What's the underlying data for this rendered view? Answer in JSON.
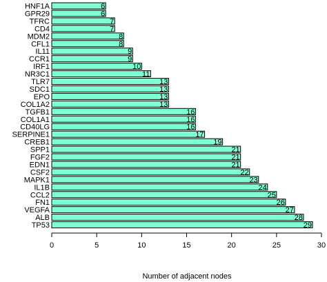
{
  "chart_data": {
    "type": "bar",
    "orientation": "horizontal",
    "categories": [
      "HNF1A",
      "GPR29",
      "TFRC",
      "CD4",
      "MDM2",
      "CFL1",
      "IL11",
      "CCR1",
      "IRF1",
      "NR3C1",
      "TLR7",
      "SDC1",
      "EPO",
      "COL1A2",
      "TGFB1",
      "COL1A1",
      "CD40LG",
      "SERPINE1",
      "CREB1",
      "SPP1",
      "FGF2",
      "EDN1",
      "CSF2",
      "MAPK1",
      "IL1B",
      "CCL2",
      "FN1",
      "VEGFA",
      "ALB",
      "TP53"
    ],
    "values": [
      6,
      6,
      7,
      7,
      8,
      8,
      9,
      9,
      10,
      11,
      13,
      13,
      13,
      13,
      16,
      16,
      16,
      17,
      19,
      21,
      21,
      21,
      22,
      23,
      24,
      25,
      26,
      27,
      28,
      29
    ],
    "xlabel": "Number of adjacent nodes",
    "ylabel": "",
    "xlim": [
      0,
      30
    ],
    "xticks": [
      0,
      5,
      10,
      15,
      20,
      25,
      30
    ],
    "bar_color": "#7fffd4",
    "bar_stroke": "#000000",
    "grid": false
  }
}
